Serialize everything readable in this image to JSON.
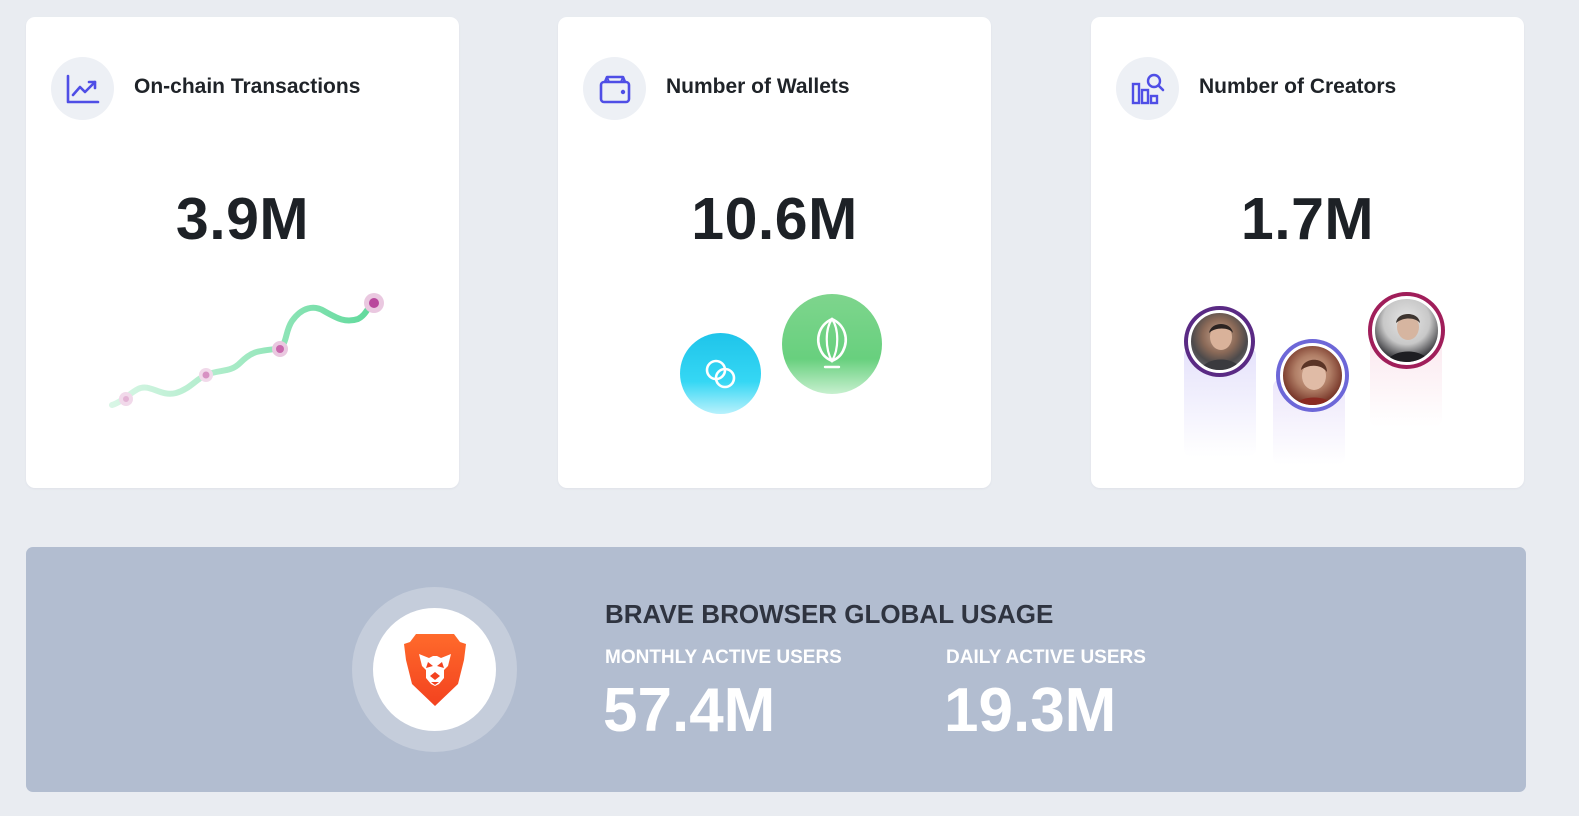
{
  "cards": [
    {
      "id": "transactions",
      "icon": "trending-up-chart-icon",
      "title": "On-chain Transactions",
      "value": "3.9M"
    },
    {
      "id": "wallets",
      "icon": "wallet-icon",
      "title": "Number of Wallets",
      "value": "10.6M",
      "logos": [
        "gemini-logo",
        "uphold-logo"
      ]
    },
    {
      "id": "creators",
      "icon": "creator-search-icon",
      "title": "Number of Creators",
      "value": "1.7M",
      "avatars": [
        "creator-avatar-1",
        "creator-avatar-2",
        "creator-avatar-3"
      ]
    }
  ],
  "banner": {
    "logo": "brave-lion-logo",
    "title": "BRAVE BROWSER GLOBAL USAGE",
    "stats": [
      {
        "label": "MONTHLY ACTIVE USERS",
        "value": "57.4M"
      },
      {
        "label": "DAILY ACTIVE USERS",
        "value": "19.3M"
      }
    ]
  },
  "colors": {
    "page_background": "#e9ecf1",
    "card_background": "#ffffff",
    "icon_accent": "#4f4ee6",
    "sparkline_green": "#5fd99b",
    "sparkline_marker": "#b9479c",
    "banner_background": "#b2bdd0",
    "brave_orange": "#fb542b"
  }
}
